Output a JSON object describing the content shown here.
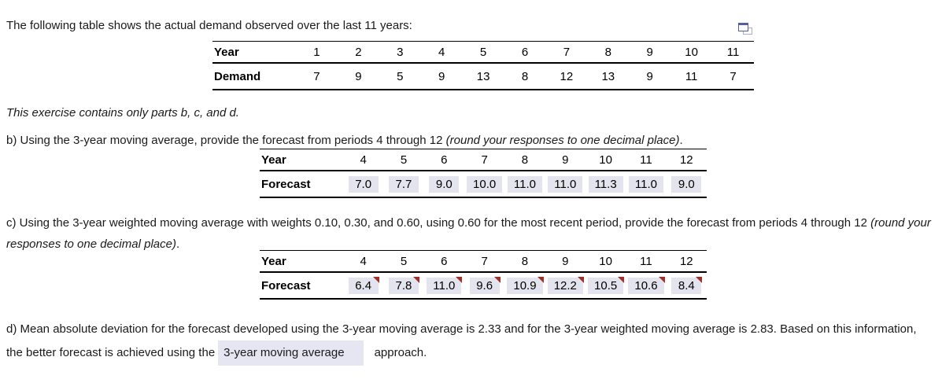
{
  "colors": {
    "answer_highlight": "#e4e4ee",
    "dropdown_highlight": "#e6e6f2",
    "marker_red": "#a0302a",
    "table_border": "#000000",
    "icon_blue": "#565e9c"
  },
  "icons": {
    "popout": "popout-window-icon"
  },
  "intro": {
    "text": "The following table shows the actual demand observed over the last 11 years:"
  },
  "demand_table": {
    "row1_label": "Year",
    "row2_label": "Demand",
    "columns": [
      "1",
      "2",
      "3",
      "4",
      "5",
      "6",
      "7",
      "8",
      "9",
      "10",
      "11"
    ],
    "values": [
      "7",
      "9",
      "5",
      "9",
      "13",
      "8",
      "12",
      "13",
      "9",
      "11",
      "7"
    ],
    "highlighted": false,
    "markers": false
  },
  "note": {
    "text": "This exercise contains only parts b, c, and d."
  },
  "part_b": {
    "prefix": "b) Using the 3-year moving average, provide the forecast from periods 4 through 12 ",
    "italic": "(round your responses to one decimal place)",
    "suffix": ".",
    "table": {
      "row1_label": "Year",
      "row2_label": "Forecast",
      "columns": [
        "4",
        "5",
        "6",
        "7",
        "8",
        "9",
        "10",
        "11",
        "12"
      ],
      "values": [
        "7.0",
        "7.7",
        "9.0",
        "10.0",
        "11.0",
        "11.0",
        "11.3",
        "11.0",
        "9.0"
      ],
      "highlighted": true,
      "markers": false
    }
  },
  "part_c": {
    "prefix": "c) Using the 3-year weighted moving average with weights 0.10, 0.30, and 0.60, using 0.60 for the most recent period, provide the forecast from periods 4 through 12 ",
    "italic": "(round your responses to one decimal place)",
    "suffix": ".",
    "table": {
      "row1_label": "Year",
      "row2_label": "Forecast",
      "columns": [
        "4",
        "5",
        "6",
        "7",
        "8",
        "9",
        "10",
        "11",
        "12"
      ],
      "values": [
        "6.4",
        "7.8",
        "11.0",
        "9.6",
        "10.9",
        "12.2",
        "10.5",
        "10.6",
        "8.4"
      ],
      "highlighted": true,
      "markers": true
    }
  },
  "part_d": {
    "text_before": "d) Mean absolute deviation for the forecast developed using the 3-year moving average is 2.33 and for the 3-year weighted moving average is 2.83.  Based on this information, the better forecast is achieved using the",
    "dropdown_value": "3-year moving average",
    "text_after": "approach."
  }
}
